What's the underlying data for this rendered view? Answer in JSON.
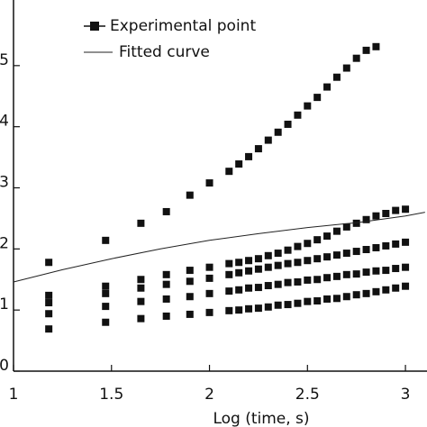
{
  "chart_data": {
    "type": "scatter",
    "xlabel": "Log (time, s)",
    "xlim": [
      1,
      3.11
    ],
    "xticks": [
      1,
      1.5,
      2,
      2.5,
      3
    ],
    "ylim": [
      0,
      6
    ],
    "yticks": [
      0,
      1,
      2,
      3,
      4,
      5
    ],
    "x": [
      1.18,
      1.47,
      1.65,
      1.78,
      1.9,
      2.0,
      2.1,
      2.15,
      2.2,
      2.25,
      2.3,
      2.35,
      2.4,
      2.45,
      2.5,
      2.55,
      2.6,
      2.65,
      2.7,
      2.75,
      2.8,
      2.85,
      2.9,
      2.95,
      3.0
    ],
    "series": [
      {
        "name": "Experimental point",
        "color": "#111111",
        "values": [
          1.78,
          2.14,
          2.42,
          2.61,
          2.88,
          3.08,
          3.27,
          3.39,
          3.51,
          3.64,
          3.78,
          3.91,
          4.04,
          4.19,
          4.34,
          4.48,
          4.65,
          4.81,
          4.96,
          5.12,
          5.25,
          5.31,
          null,
          null,
          null
        ]
      },
      {
        "color": "#111111",
        "values": [
          1.24,
          1.39,
          1.5,
          1.58,
          1.65,
          1.7,
          1.76,
          1.78,
          1.81,
          1.84,
          1.89,
          1.93,
          1.98,
          2.04,
          2.09,
          2.15,
          2.21,
          2.29,
          2.36,
          2.42,
          2.48,
          2.54,
          2.58,
          2.63,
          2.65
        ]
      },
      {
        "color": "#111111",
        "values": [
          1.12,
          1.27,
          1.36,
          1.42,
          1.47,
          1.52,
          1.58,
          1.61,
          1.64,
          1.67,
          1.7,
          1.73,
          1.76,
          1.78,
          1.81,
          1.84,
          1.87,
          1.9,
          1.93,
          1.96,
          1.99,
          2.02,
          2.05,
          2.08,
          2.11
        ]
      },
      {
        "color": "#111111",
        "values": [
          0.94,
          1.06,
          1.14,
          1.18,
          1.22,
          1.27,
          1.31,
          1.33,
          1.36,
          1.37,
          1.4,
          1.42,
          1.45,
          1.46,
          1.49,
          1.5,
          1.53,
          1.55,
          1.58,
          1.59,
          1.62,
          1.64,
          1.65,
          1.68,
          1.7
        ]
      },
      {
        "color": "#111111",
        "values": [
          0.69,
          0.8,
          0.86,
          0.9,
          0.93,
          0.96,
          0.99,
          1.0,
          1.02,
          1.03,
          1.05,
          1.08,
          1.09,
          1.11,
          1.14,
          1.15,
          1.18,
          1.19,
          1.22,
          1.25,
          1.27,
          1.3,
          1.33,
          1.36,
          1.39
        ]
      }
    ],
    "fit": {
      "name": "Fitted curve",
      "color": "#222222",
      "x": [
        1,
        1.25,
        1.5,
        1.75,
        2,
        2.25,
        2.5,
        2.75,
        3,
        3.1
      ],
      "values": [
        1.46,
        1.66,
        1.84,
        2.0,
        2.14,
        2.25,
        2.35,
        2.43,
        2.54,
        2.6
      ]
    }
  }
}
